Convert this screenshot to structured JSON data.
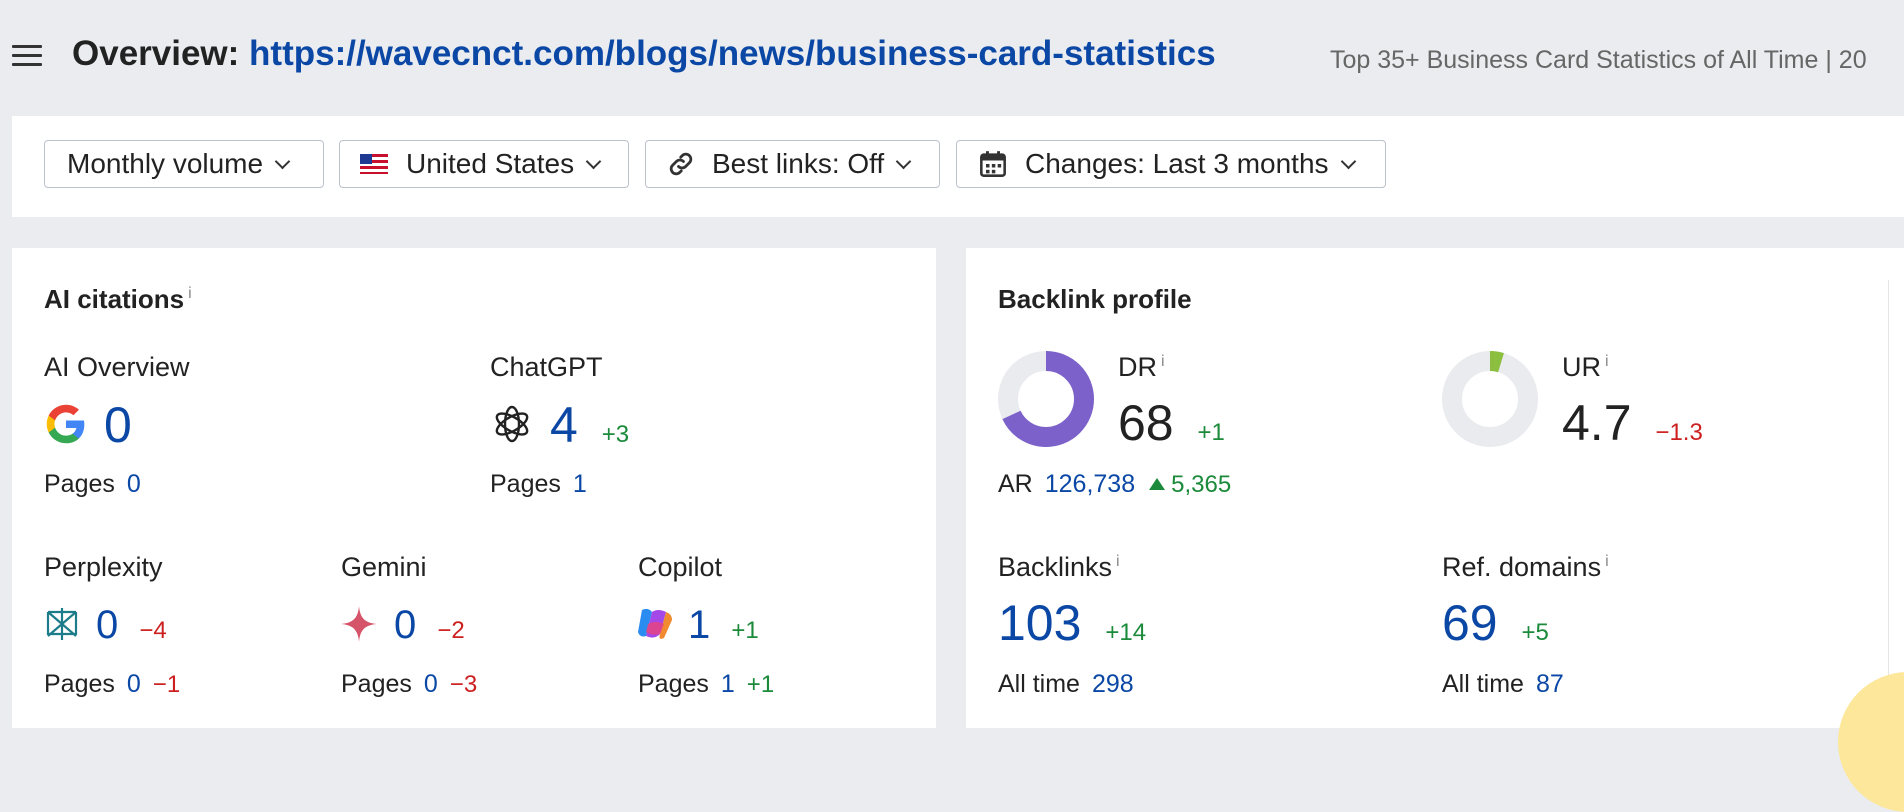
{
  "header": {
    "title_prefix": "Overview:",
    "url": "https://wavecnct.com/blogs/news/business-card-statistics",
    "page_title": "Top 35+ Business Card Statistics of All Time | 20"
  },
  "filters": {
    "volume": "Monthly volume",
    "country": "United States",
    "best_links": "Best links: Off",
    "changes": "Changes: Last 3 months"
  },
  "ai_citations": {
    "title": "AI citations",
    "info": "i",
    "pages_label": "Pages",
    "overview": {
      "label": "AI Overview",
      "value": "0",
      "pages": "0"
    },
    "chatgpt": {
      "label": "ChatGPT",
      "value": "4",
      "delta": "+3",
      "pages": "1"
    },
    "perplexity": {
      "label": "Perplexity",
      "value": "0",
      "delta": "−4",
      "pages": "0",
      "pages_delta": "−1"
    },
    "gemini": {
      "label": "Gemini",
      "value": "0",
      "delta": "−2",
      "pages": "0",
      "pages_delta": "−3"
    },
    "copilot": {
      "label": "Copilot",
      "value": "1",
      "delta": "+1",
      "pages": "1",
      "pages_delta": "+1"
    }
  },
  "backlink_profile": {
    "title": "Backlink profile",
    "info": "i",
    "dr": {
      "label": "DR",
      "value": "68",
      "delta": "+1",
      "fill_fraction": 0.68
    },
    "ar": {
      "label": "AR",
      "value": "126,738",
      "delta": "5,365"
    },
    "ur": {
      "label": "UR",
      "value": "4.7",
      "delta": "−1.3",
      "fill_fraction": 0.047
    },
    "backlinks": {
      "label": "Backlinks",
      "value": "103",
      "delta": "+14",
      "all_time_label": "All time",
      "all_time": "298"
    },
    "ref_domains": {
      "label": "Ref. domains",
      "value": "69",
      "delta": "+5",
      "all_time_label": "All time",
      "all_time": "87"
    }
  },
  "colors": {
    "link_blue": "#0b47a5",
    "positive": "#1b8a3a",
    "negative": "#cc1f1f",
    "dr_ring": "#7b61c9",
    "ur_ring": "#8cbf3f"
  }
}
